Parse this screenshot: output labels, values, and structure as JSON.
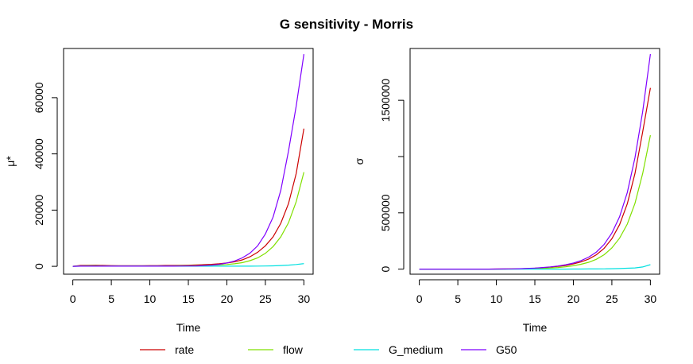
{
  "title": "G sensitivity - Morris",
  "colors": {
    "rate": "#cc0000",
    "flow": "#80e000",
    "G_medium": "#00e0e0",
    "G50": "#7f00ff"
  },
  "legend": {
    "placement": "bottom",
    "entries": [
      {
        "label": "rate",
        "color": "#cc0000"
      },
      {
        "label": "flow",
        "color": "#80e000"
      },
      {
        "label": "G_medium",
        "color": "#00e0e0"
      },
      {
        "label": "G50",
        "color": "#7f00ff"
      }
    ]
  },
  "chart_data": [
    {
      "type": "line",
      "xlabel": "Time",
      "ylabel": "μ*",
      "xlim": [
        -1.2,
        31.2
      ],
      "ylim": [
        -2800,
        77500
      ],
      "xticks": [
        0,
        5,
        10,
        15,
        20,
        25,
        30
      ],
      "yticks": [
        0,
        20000,
        40000,
        60000
      ],
      "grid": false,
      "x": [
        0,
        1,
        2,
        3,
        4,
        5,
        6,
        7,
        8,
        9,
        10,
        11,
        12,
        13,
        14,
        15,
        16,
        17,
        18,
        19,
        20,
        21,
        22,
        23,
        24,
        25,
        26,
        27,
        28,
        29,
        30
      ],
      "series": [
        {
          "name": "rate",
          "color": "#cc0000",
          "values": [
            0,
            300,
            350,
            400,
            300,
            250,
            200,
            200,
            200,
            200,
            250,
            250,
            300,
            300,
            350,
            400,
            500,
            600,
            700,
            900,
            1200,
            1600,
            2300,
            3400,
            5000,
            7300,
            10500,
            15300,
            22300,
            33000,
            49000
          ]
        },
        {
          "name": "flow",
          "color": "#80e000",
          "values": [
            0,
            150,
            200,
            200,
            150,
            150,
            150,
            150,
            150,
            150,
            150,
            150,
            150,
            150,
            200,
            200,
            250,
            300,
            400,
            500,
            650,
            900,
            1300,
            2000,
            3000,
            4600,
            7000,
            10500,
            15500,
            23000,
            33500
          ]
        },
        {
          "name": "G_medium",
          "color": "#00e0e0",
          "values": [
            0,
            50,
            60,
            60,
            60,
            60,
            60,
            60,
            60,
            60,
            60,
            60,
            60,
            60,
            60,
            60,
            60,
            60,
            60,
            60,
            60,
            60,
            60,
            60,
            80,
            120,
            180,
            280,
            420,
            640,
            950
          ]
        },
        {
          "name": "G50",
          "color": "#7f00ff",
          "values": [
            0,
            50,
            60,
            60,
            60,
            60,
            60,
            60,
            60,
            60,
            60,
            60,
            60,
            60,
            80,
            100,
            150,
            250,
            400,
            700,
            1200,
            1900,
            3000,
            4700,
            7300,
            11500,
            17500,
            27000,
            41000,
            57000,
            75500
          ]
        }
      ]
    },
    {
      "type": "line",
      "xlabel": "Time",
      "ylabel": "σ",
      "xlim": [
        -1.2,
        31.2
      ],
      "ylim": [
        -45000,
        1960000
      ],
      "xticks": [
        0,
        5,
        10,
        15,
        20,
        25,
        30
      ],
      "yticks": [
        0,
        500000,
        1000000,
        1500000
      ],
      "yticklabels": [
        "0",
        "500000",
        "",
        "1500000"
      ],
      "grid": false,
      "x": [
        0,
        1,
        2,
        3,
        4,
        5,
        6,
        7,
        8,
        9,
        10,
        11,
        12,
        13,
        14,
        15,
        16,
        17,
        18,
        19,
        20,
        21,
        22,
        23,
        24,
        25,
        26,
        27,
        28,
        29,
        30
      ],
      "series": [
        {
          "name": "rate",
          "color": "#cc0000",
          "values": [
            0,
            0,
            0,
            0,
            0,
            0,
            0,
            100,
            200,
            400,
            700,
            1200,
            2000,
            3300,
            5200,
            8000,
            12000,
            17000,
            24000,
            33000,
            46000,
            64000,
            90000,
            128000,
            185000,
            270000,
            395000,
            580000,
            850000,
            1220000,
            1610000
          ]
        },
        {
          "name": "flow",
          "color": "#80e000",
          "values": [
            0,
            0,
            0,
            0,
            0,
            0,
            0,
            50,
            100,
            200,
            400,
            700,
            1100,
            1800,
            2900,
            4500,
            6800,
            10000,
            14500,
            21000,
            30000,
            43000,
            61000,
            88000,
            128000,
            188000,
            275000,
            400000,
            585000,
            850000,
            1190000
          ]
        },
        {
          "name": "G_medium",
          "color": "#00e0e0",
          "values": [
            0,
            0,
            0,
            0,
            0,
            0,
            0,
            0,
            0,
            0,
            0,
            0,
            0,
            0,
            0,
            50,
            100,
            200,
            300,
            450,
            650,
            900,
            1300,
            1800,
            2600,
            3700,
            5300,
            7600,
            11000,
            19000,
            40000
          ]
        },
        {
          "name": "G50",
          "color": "#7f00ff",
          "values": [
            0,
            0,
            0,
            0,
            0,
            0,
            0,
            100,
            200,
            400,
            800,
            1400,
            2400,
            4000,
            6300,
            9500,
            14000,
            20000,
            28000,
            39000,
            54000,
            76000,
            107000,
            152000,
            220000,
            320000,
            465000,
            680000,
            990000,
            1400000,
            1910000
          ]
        }
      ]
    }
  ]
}
